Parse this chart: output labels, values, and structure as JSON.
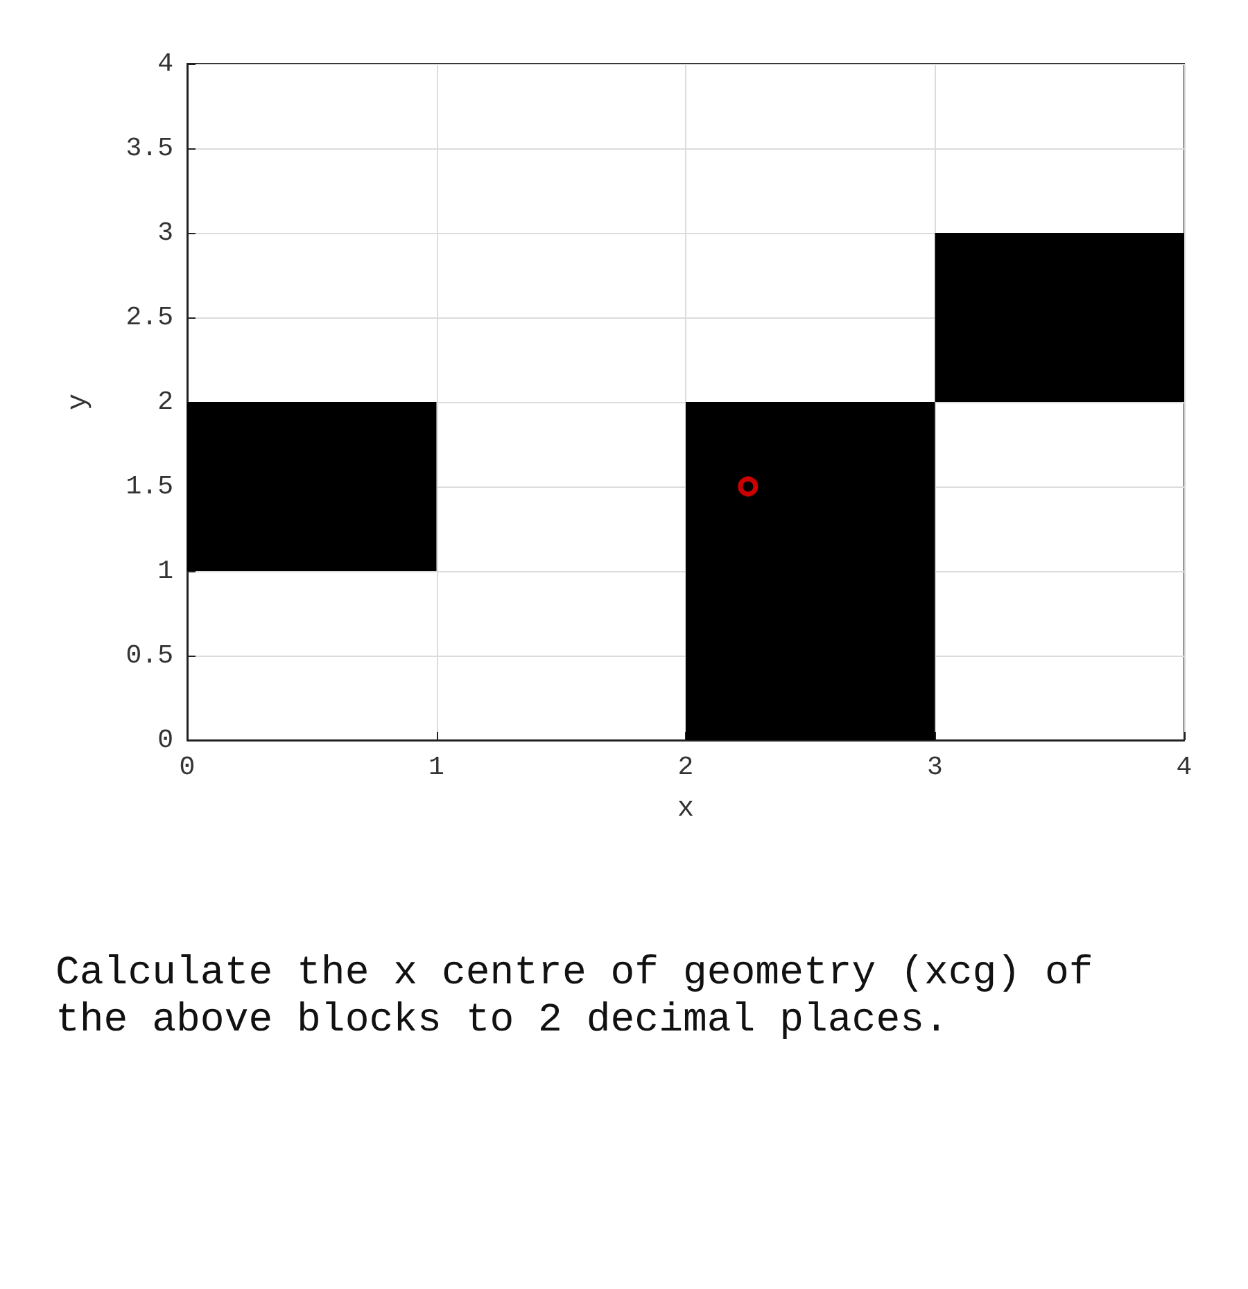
{
  "chart_data": {
    "type": "bar",
    "xlabel": "x",
    "ylabel": "y",
    "x": [
      0.5,
      1.5,
      2.5,
      3.5
    ],
    "xlim": [
      0,
      4
    ],
    "xticks": [
      0,
      1,
      2,
      3,
      4
    ],
    "ylim": [
      0,
      4
    ],
    "yticks": [
      0,
      0.5,
      1,
      1.5,
      2,
      2.5,
      3,
      3.5,
      4
    ],
    "grid": true,
    "series": [
      {
        "color": "#000000",
        "values": [
          1,
          null,
          2,
          1
        ],
        "base": [
          1,
          null,
          0,
          2
        ]
      },
      {
        "type": "scatter",
        "x": [
          2.25
        ],
        "values": [
          1.5
        ],
        "color": "#ff0000",
        "marker": "circle"
      }
    ],
    "annotations": [
      "Calculate the x centre of geometry (xcg) of the above blocks to 2 decimal places."
    ]
  }
}
